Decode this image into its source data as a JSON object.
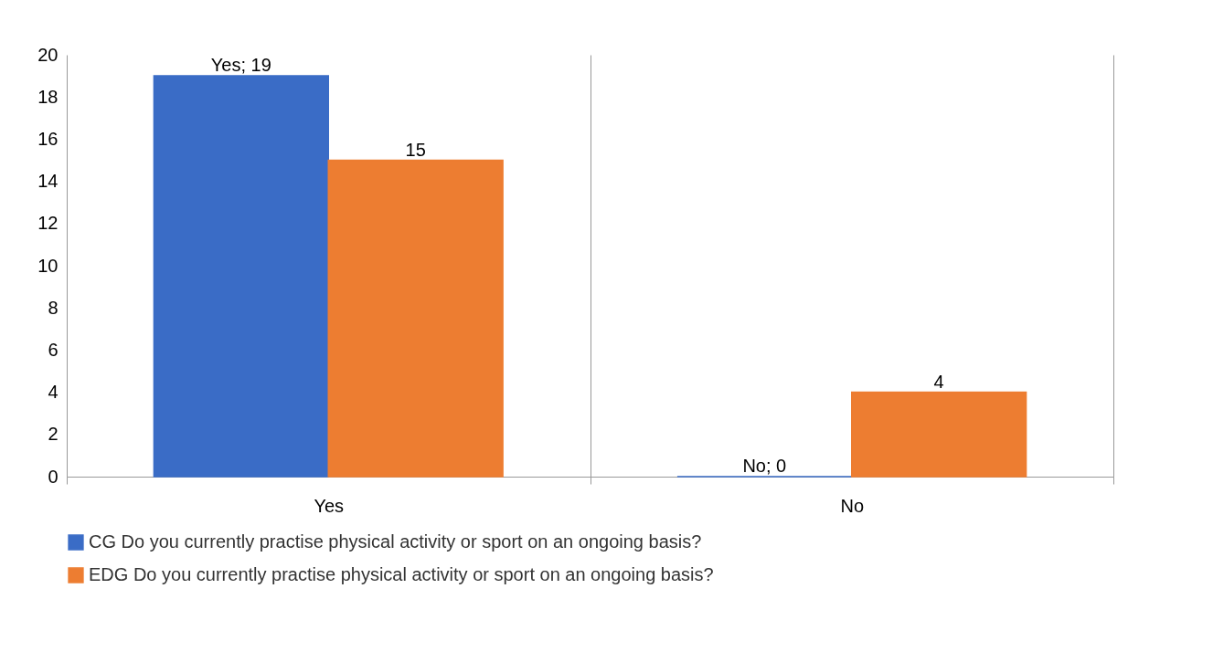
{
  "chart_data": {
    "type": "bar",
    "categories": [
      "Yes",
      "No"
    ],
    "series": [
      {
        "name": "CG Do you currently practise physical activity or sport on an ongoing basis?",
        "color": "#3a6cc6",
        "values": [
          19,
          0
        ],
        "value_labels": [
          "Yes; 19",
          "No; 0"
        ]
      },
      {
        "name": "EDG Do you currently practise physical activity or sport on an ongoing basis?",
        "color": "#ed7d31",
        "values": [
          15,
          4
        ],
        "value_labels": [
          "15",
          "4"
        ]
      }
    ],
    "ylim": [
      0,
      20
    ],
    "yticks": [
      0,
      2,
      4,
      6,
      8,
      10,
      12,
      14,
      16,
      18,
      20
    ],
    "grid": "x",
    "legend": "bottom"
  }
}
